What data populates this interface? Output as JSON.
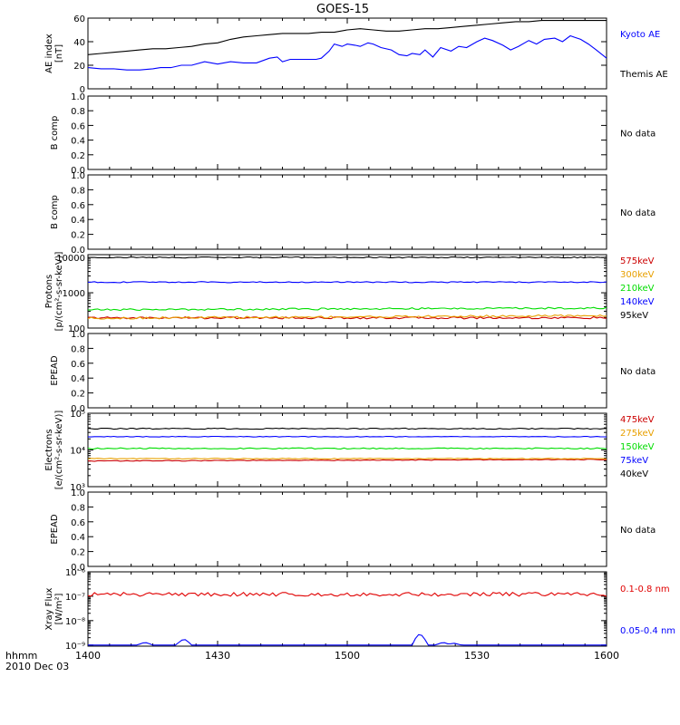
{
  "title": "GOES-15",
  "time_axis": {
    "ticks": [
      "1400",
      "1430",
      "1500",
      "1530",
      "1600"
    ],
    "label_line1": "hhmm",
    "label_line2": "2010 Dec 03"
  },
  "colors": {
    "black": "#000000",
    "blue": "#0000ff",
    "red": "#e00000",
    "orange": "#e8a000",
    "green": "#00dd00",
    "darkred": "#cc0000"
  },
  "chart_data": [
    {
      "panel": "ae-index",
      "type": "line",
      "ylabel": [
        "AE index",
        "[nT]"
      ],
      "ylim": [
        0,
        60
      ],
      "yticks": [
        "0",
        "20",
        "40",
        "60"
      ],
      "scale": "linear",
      "x_hours": [
        14.0,
        14.5,
        15.0,
        15.5,
        16.0
      ],
      "series": [
        {
          "name": "Kyoto AE",
          "color": "#0000ff",
          "label_color": "#0000ff",
          "x": [
            14.0,
            14.05,
            14.1,
            14.15,
            14.2,
            14.25,
            14.28,
            14.32,
            14.36,
            14.4,
            14.45,
            14.5,
            14.55,
            14.6,
            14.65,
            14.7,
            14.73,
            14.75,
            14.78,
            14.8,
            14.82,
            14.85,
            14.88,
            14.9,
            14.93,
            14.95,
            14.98,
            15.0,
            15.03,
            15.05,
            15.08,
            15.1,
            15.13,
            15.17,
            15.2,
            15.23,
            15.25,
            15.28,
            15.3,
            15.33,
            15.36,
            15.4,
            15.43,
            15.46,
            15.5,
            15.53,
            15.56,
            15.6,
            15.63,
            15.66,
            15.7,
            15.73,
            15.76,
            15.8,
            15.83,
            15.86,
            15.9,
            15.93,
            15.96,
            16.0
          ],
          "y": [
            18,
            17,
            17,
            16,
            16,
            17,
            18,
            18,
            20,
            20,
            23,
            21,
            23,
            22,
            22,
            26,
            27,
            23,
            25,
            25,
            25,
            25,
            25,
            26,
            32,
            38,
            36,
            38,
            37,
            36,
            39,
            38,
            35,
            33,
            29,
            28,
            30,
            29,
            33,
            27,
            35,
            32,
            36,
            35,
            40,
            43,
            41,
            37,
            33,
            36,
            41,
            38,
            42,
            43,
            40,
            45,
            42,
            38,
            33,
            26
          ]
        },
        {
          "name": "Themis AE",
          "color": "#000000",
          "label_color": "#000000",
          "x": [
            14.0,
            14.05,
            14.1,
            14.15,
            14.2,
            14.25,
            14.3,
            14.35,
            14.4,
            14.45,
            14.5,
            14.55,
            14.6,
            14.65,
            14.7,
            14.75,
            14.8,
            14.85,
            14.9,
            14.95,
            15.0,
            15.05,
            15.1,
            15.15,
            15.2,
            15.25,
            15.3,
            15.35,
            15.4,
            15.45,
            15.5,
            15.55,
            15.6,
            15.65,
            15.7,
            15.75,
            15.8,
            15.85,
            15.9,
            15.95,
            16.0
          ],
          "y": [
            29,
            30,
            31,
            32,
            33,
            34,
            34,
            35,
            36,
            38,
            39,
            42,
            44,
            45,
            46,
            47,
            47,
            47,
            48,
            48,
            50,
            51,
            50,
            49,
            49,
            50,
            51,
            51,
            52,
            53,
            54,
            55,
            56,
            57,
            57,
            58,
            58,
            58,
            58,
            58,
            58
          ]
        }
      ]
    },
    {
      "panel": "b-comp-1",
      "type": "line",
      "ylabel": [
        "B comp"
      ],
      "ylim": [
        0,
        1
      ],
      "yticks": [
        "0.0",
        "0.2",
        "0.4",
        "0.6",
        "0.8",
        "1.0"
      ],
      "scale": "linear",
      "no_data": "No data",
      "series": []
    },
    {
      "panel": "b-comp-2",
      "type": "line",
      "ylabel": [
        "B comp"
      ],
      "ylim": [
        0,
        1
      ],
      "yticks": [
        "0.0",
        "0.2",
        "0.4",
        "0.6",
        "0.8",
        "1.0"
      ],
      "scale": "linear",
      "no_data": "No data",
      "series": []
    },
    {
      "panel": "protons",
      "type": "line",
      "ylabel": [
        "Protons",
        "[p/(cm²-s-sr-keV)]"
      ],
      "ylim": [
        100,
        12000
      ],
      "scale": "log",
      "yticks": [
        {
          "v": 100,
          "t": "100"
        },
        {
          "v": 1000,
          "t": "1000"
        },
        {
          "v": 10000,
          "t": "10000"
        }
      ],
      "series": [
        {
          "name": "575keV",
          "color": "#cc0000",
          "label_color": "#cc0000",
          "flat": 195,
          "wobble": 0.03
        },
        {
          "name": "300keV",
          "color": "#e8a000",
          "label_color": "#e8a000",
          "flat": 190,
          "wobble": 0.03,
          "trend": 35
        },
        {
          "name": "210keV",
          "color": "#00dd00",
          "label_color": "#00dd00",
          "flat": 330,
          "wobble": 0.025,
          "trend": 40
        },
        {
          "name": "140keV",
          "color": "#0000ff",
          "label_color": "#0000ff",
          "flat": 2000,
          "wobble": 0.015
        },
        {
          "name": "95keV",
          "color": "#000000",
          "label_color": "#000000",
          "flat": 10000,
          "wobble": 0.015
        }
      ]
    },
    {
      "panel": "epead-1",
      "type": "line",
      "ylabel": [
        "EPEAD"
      ],
      "ylim": [
        0,
        1
      ],
      "yticks": [
        "0.0",
        "0.2",
        "0.4",
        "0.6",
        "0.8",
        "1.0"
      ],
      "scale": "linear",
      "no_data": "No data",
      "series": []
    },
    {
      "panel": "electrons",
      "type": "line",
      "ylabel": [
        "Electrons",
        "[e/(cm²-s-sr-keV)]"
      ],
      "ylim": [
        1000,
        100000
      ],
      "scale": "log",
      "yticks": [
        {
          "v": 1000,
          "t": "10³"
        },
        {
          "v": 10000,
          "t": "10⁴"
        },
        {
          "v": 100000,
          "t": "10⁵"
        }
      ],
      "series": [
        {
          "name": "475keV",
          "color": "#cc0000",
          "label_color": "#cc0000",
          "flat": 5000,
          "wobble": 0.01,
          "trend": 500
        },
        {
          "name": "275keV",
          "color": "#e8a000",
          "label_color": "#e8a000",
          "flat": 5800,
          "wobble": 0.01
        },
        {
          "name": "150keV",
          "color": "#00dd00",
          "label_color": "#00dd00",
          "flat": 11000,
          "wobble": 0.015
        },
        {
          "name": "75keV",
          "color": "#0000ff",
          "label_color": "#0000ff",
          "flat": 23000,
          "wobble": 0.01
        },
        {
          "name": "40keV",
          "color": "#000000",
          "label_color": "#000000",
          "flat": 38000,
          "wobble": 0.015
        }
      ]
    },
    {
      "panel": "epead-2",
      "type": "line",
      "ylabel": [
        "EPEAD"
      ],
      "ylim": [
        0,
        1
      ],
      "yticks": [
        "0.0",
        "0.2",
        "0.4",
        "0.6",
        "0.8",
        "1.0"
      ],
      "scale": "linear",
      "no_data": "No data",
      "series": []
    },
    {
      "panel": "xray",
      "type": "line",
      "ylabel": [
        "Xray Flux",
        "[W/m²]"
      ],
      "ylim": [
        9e-10,
        1e-06
      ],
      "scale": "log",
      "yticks": [
        {
          "v": 1e-09,
          "t": "10⁻⁹"
        },
        {
          "v": 1e-08,
          "t": "10⁻⁸"
        },
        {
          "v": 1e-07,
          "t": "10⁻⁷"
        },
        {
          "v": 1e-06,
          "t": "10⁻⁶"
        }
      ],
      "series": [
        {
          "name": "0.1-0.8 nm",
          "color": "#e00000",
          "label_color": "#e00000",
          "flat": 1.2e-07,
          "wobble": 0.08
        },
        {
          "name": "0.05-0.4 nm",
          "color": "#0000ff",
          "label_color": "#0000ff",
          "flat": 1e-09,
          "spikes": [
            {
              "x": 14.22,
              "y": 1.3e-09
            },
            {
              "x": 14.37,
              "y": 1.8e-09
            },
            {
              "x": 15.28,
              "y": 3e-09
            },
            {
              "x": 15.37,
              "y": 1.3e-09
            },
            {
              "x": 15.41,
              "y": 1.2e-09
            }
          ]
        }
      ]
    }
  ]
}
